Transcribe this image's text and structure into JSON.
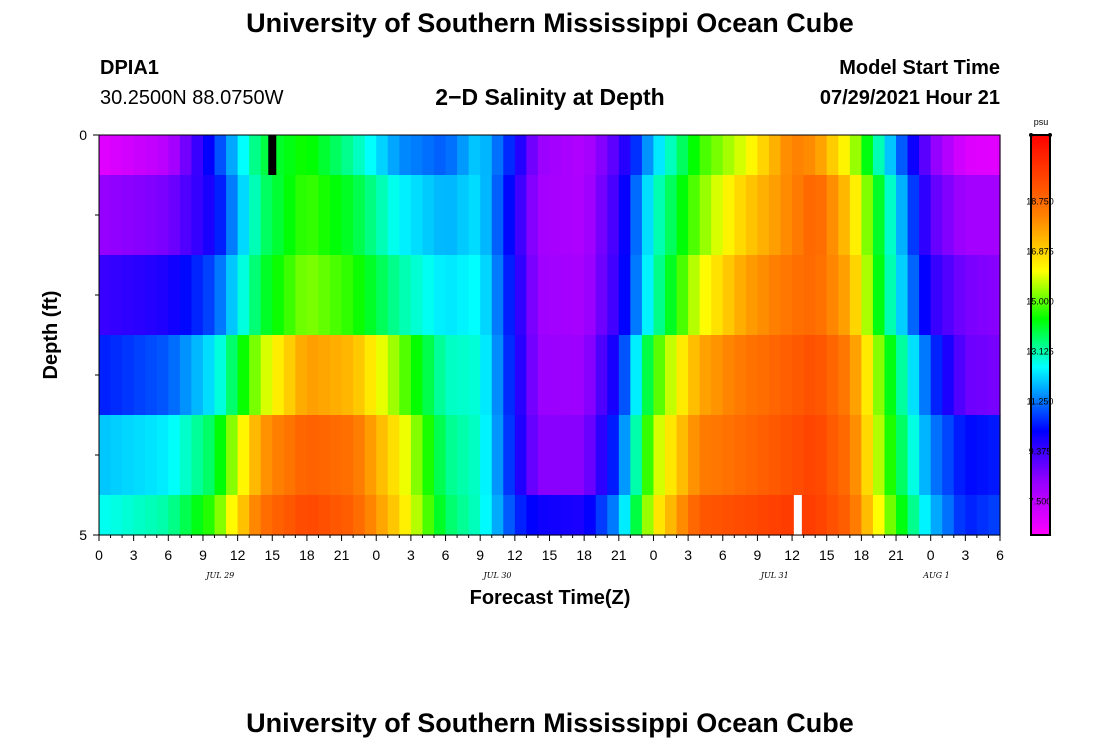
{
  "header": {
    "title": "University of Southern Mississippi Ocean Cube",
    "station_id": "DPIA1",
    "coords": "30.2500N  88.0750W",
    "plot_title": "2−D Salinity at Depth",
    "model_start_label": "Model Start Time",
    "model_start_value": "07/29/2021 Hour 21"
  },
  "footer": {
    "title": "University of Southern Mississippi Ocean Cube"
  },
  "chart_data": {
    "type": "heatmap",
    "title": "2-D Salinity at Depth",
    "xlabel": "Forecast Time(Z)",
    "ylabel": "Depth (ft)",
    "x_range_hours": [
      0,
      78
    ],
    "y_range": [
      0,
      5
    ],
    "x_tick_labels": [
      "0",
      "3",
      "6",
      "9",
      "12",
      "15",
      "18",
      "21",
      "0",
      "3",
      "6",
      "9",
      "12",
      "15",
      "18",
      "21",
      "0",
      "3",
      "6",
      "9",
      "12",
      "15",
      "18",
      "21",
      "0",
      "3",
      "6"
    ],
    "date_labels": [
      {
        "label": "JUL 29",
        "hour": 10.5
      },
      {
        "label": "JUL 30",
        "hour": 34.5
      },
      {
        "label": "JUL 31",
        "hour": 58.5
      },
      {
        "label": "AUG 1",
        "hour": 72.5
      }
    ],
    "y_tick_labels": {
      "top": "0",
      "bottom": "5"
    },
    "y_minor_ticks": [
      1,
      2,
      3,
      4
    ],
    "colorbar": {
      "unit": "psu",
      "min": 6.25,
      "max": 21.25,
      "labels": [
        "18.750",
        "16.875",
        "15.000",
        "13.125",
        "11.250",
        "9.375",
        "7.500"
      ],
      "label_values": [
        18.75,
        16.875,
        15.0,
        13.125,
        11.25,
        9.375,
        7.5
      ]
    },
    "hours": [
      0,
      6,
      10,
      14,
      18,
      22,
      26,
      30,
      33,
      36,
      38,
      42,
      45,
      48,
      52,
      56,
      60,
      62,
      65,
      68,
      72,
      75,
      78
    ],
    "salinity_rows": [
      {
        "depth_range": [
          0.0,
          0.5
        ],
        "values": [
          6.8,
          7.6,
          10.5,
          13.8,
          14.5,
          13.2,
          11.5,
          11.0,
          12.2,
          10.2,
          8.2,
          7.7,
          9.2,
          12.0,
          14.7,
          16.0,
          18.3,
          18.0,
          16.0,
          12.5,
          8.5,
          6.9,
          6.8
        ]
      },
      {
        "depth_range": [
          0.5,
          1.5
        ],
        "values": [
          8.2,
          8.6,
          10.0,
          13.5,
          14.8,
          14.0,
          12.5,
          11.8,
          12.3,
          9.8,
          8.0,
          7.8,
          9.5,
          12.8,
          15.2,
          17.0,
          18.2,
          19.0,
          17.0,
          13.5,
          9.0,
          8.0,
          8.0
        ]
      },
      {
        "depth_range": [
          1.5,
          2.5
        ],
        "values": [
          9.4,
          9.8,
          10.9,
          13.9,
          15.3,
          14.6,
          13.2,
          12.3,
          12.6,
          10.0,
          8.1,
          7.9,
          9.6,
          13.0,
          16.0,
          17.7,
          18.6,
          18.8,
          17.5,
          13.6,
          9.6,
          8.6,
          8.4
        ]
      },
      {
        "depth_range": [
          2.5,
          3.5
        ],
        "values": [
          10.4,
          11.0,
          12.4,
          15.6,
          17.8,
          17.3,
          15.2,
          13.0,
          12.8,
          10.1,
          8.2,
          8.1,
          10.2,
          14.6,
          17.6,
          18.5,
          19.1,
          19.4,
          18.3,
          14.7,
          10.8,
          8.8,
          8.6
        ]
      },
      {
        "depth_range": [
          3.5,
          4.5
        ],
        "values": [
          12.0,
          12.4,
          13.8,
          17.8,
          19.0,
          18.6,
          16.4,
          13.4,
          12.9,
          10.2,
          8.4,
          8.4,
          10.8,
          15.5,
          18.3,
          18.8,
          19.4,
          19.7,
          18.6,
          15.0,
          11.4,
          10.2,
          10.4
        ]
      },
      {
        "depth_range": [
          4.5,
          5.0
        ],
        "values": [
          12.6,
          13.2,
          14.8,
          18.6,
          19.6,
          19.0,
          16.8,
          13.7,
          12.9,
          10.6,
          10.0,
          9.8,
          11.6,
          16.2,
          19.2,
          19.5,
          19.9,
          19.8,
          18.9,
          15.6,
          12.0,
          10.4,
          10.8
        ]
      }
    ],
    "markers": [
      {
        "color": "#000000",
        "hour": 15,
        "depth_range": [
          0.0,
          0.5
        ]
      },
      {
        "color": "#ffffff",
        "hour": 60.5,
        "depth_range": [
          4.5,
          5.0
        ]
      }
    ]
  }
}
